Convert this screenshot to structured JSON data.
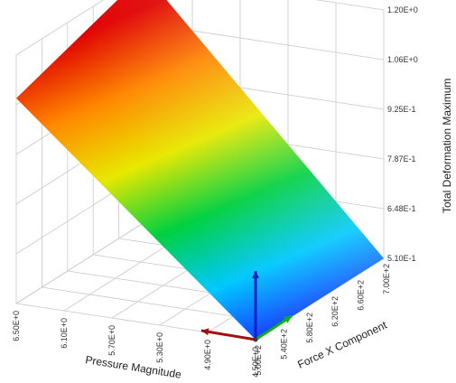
{
  "chart_data": {
    "type": "surface",
    "title": "",
    "xlabel": "Pressure Magnitude",
    "ylabel": "Force X Component",
    "zlabel": "Total Deformation Maximum",
    "x_ticks": [
      "4.50E+0",
      "4.90E+0",
      "5.30E+0",
      "5.70E+0",
      "6.10E+0",
      "6.50E+0"
    ],
    "y_ticks": [
      "5.00E+2",
      "5.40E+2",
      "5.80E+2",
      "6.20E+2",
      "6.60E+2",
      "7.00E+2"
    ],
    "z_ticks": [
      "5.10E-1",
      "6.48E-1",
      "7.87E-1",
      "9.25E-1",
      "1.06E+0",
      "1.20E+0"
    ],
    "xlim": [
      4.5,
      6.5
    ],
    "ylim": [
      500,
      700
    ],
    "zlim": [
      0.51,
      1.2
    ],
    "surface": {
      "corners": [
        {
          "x": 4.5,
          "y": 500,
          "z": 0.51
        },
        {
          "x": 4.5,
          "y": 700,
          "z": 0.51
        },
        {
          "x": 6.5,
          "y": 500,
          "z": 1.08
        },
        {
          "x": 6.5,
          "y": 700,
          "z": 1.2
        }
      ]
    },
    "colormap": [
      "#1a2cff",
      "#00c8ff",
      "#00d040",
      "#e8e800",
      "#ff8800",
      "#e00000"
    ],
    "grid": true,
    "triad_colors": {
      "x": "#a01010",
      "y": "#10b010",
      "z": "#1020c0"
    }
  }
}
